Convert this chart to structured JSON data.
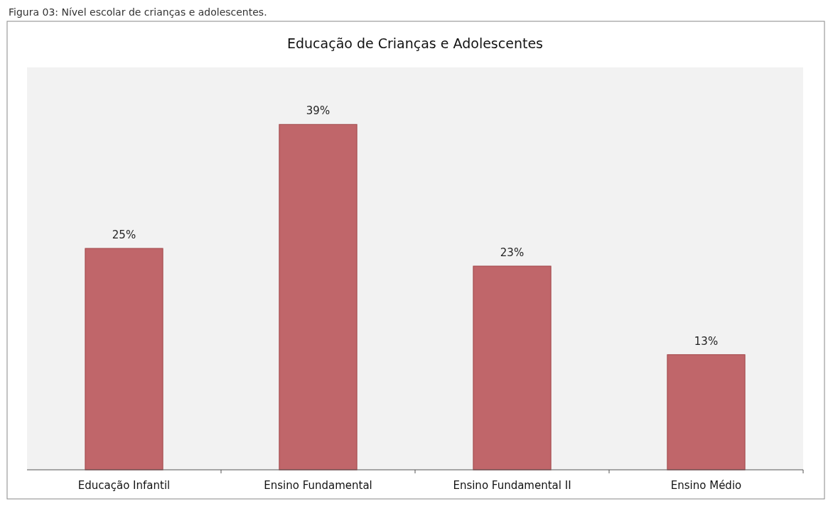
{
  "chart_data": {
    "type": "bar",
    "title": "Educação de Crianças e Adolescentes",
    "annotations": [
      "Figura 03: Nível escolar de crianças e adolescentes."
    ],
    "categories": [
      "Educação Infantil",
      "Ensino Fundamental",
      "Ensino Fundamental II",
      "Ensino Médio"
    ],
    "values": [
      25,
      39,
      23,
      13
    ],
    "color": "#c0666a",
    "data_labels": true,
    "value_labels": [
      "25%",
      "39%",
      "23%",
      "13%"
    ]
  }
}
